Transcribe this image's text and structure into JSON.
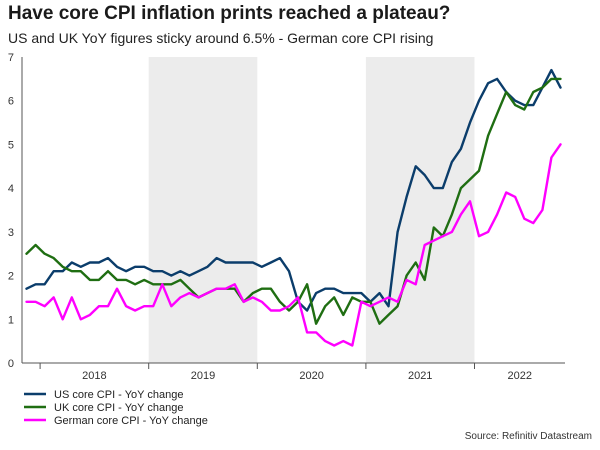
{
  "title": "Have core CPI inflation prints reached a plateau?",
  "subtitle": "US and UK YoY figures sticky around 6.5% - German core CPI rising",
  "source": "Source: Refinitiv Datastream",
  "chart_data": {
    "type": "line",
    "x_labels": [
      "2018",
      "2019",
      "2020",
      "2021",
      "2022"
    ],
    "y_ticks": [
      0,
      1,
      2,
      3,
      4,
      5,
      6,
      7
    ],
    "ylim": [
      0,
      7
    ],
    "x_start": "2017-11",
    "x_end": "2022-10",
    "shaded_years": [
      "2019",
      "2021"
    ],
    "legend_position": "bottom-left",
    "series": [
      {
        "name": "US core CPI - YoY change",
        "color": "#0b3d6b",
        "values": [
          1.7,
          1.8,
          1.8,
          2.1,
          2.1,
          2.3,
          2.2,
          2.3,
          2.3,
          2.4,
          2.2,
          2.1,
          2.2,
          2.2,
          2.1,
          2.1,
          2.0,
          2.1,
          2.0,
          2.1,
          2.2,
          2.4,
          2.3,
          2.3,
          2.3,
          2.3,
          2.2,
          2.3,
          2.4,
          2.1,
          1.4,
          1.2,
          1.6,
          1.7,
          1.7,
          1.6,
          1.6,
          1.6,
          1.4,
          1.6,
          1.3,
          3.0,
          3.8,
          4.5,
          4.3,
          4.0,
          4.0,
          4.6,
          4.9,
          5.5,
          6.0,
          6.4,
          6.5,
          6.2,
          6.0,
          5.9,
          5.9,
          6.3,
          6.7,
          6.3
        ]
      },
      {
        "name": "UK core CPI - YoY change",
        "color": "#1f6e12",
        "values": [
          2.5,
          2.7,
          2.5,
          2.4,
          2.2,
          2.1,
          2.1,
          1.9,
          1.9,
          2.1,
          1.9,
          1.9,
          1.8,
          1.9,
          1.8,
          1.8,
          1.8,
          1.9,
          1.7,
          1.5,
          1.6,
          1.7,
          1.7,
          1.7,
          1.4,
          1.6,
          1.7,
          1.7,
          1.4,
          1.2,
          1.4,
          1.8,
          0.9,
          1.3,
          1.5,
          1.1,
          1.5,
          1.4,
          1.4,
          0.9,
          1.1,
          1.3,
          2.0,
          2.3,
          1.9,
          3.1,
          2.9,
          3.4,
          4.0,
          4.2,
          4.4,
          5.2,
          5.7,
          6.2,
          5.9,
          5.8,
          6.2,
          6.3,
          6.5,
          6.5
        ]
      },
      {
        "name": "German core CPI - YoY change",
        "color": "#ff00ff",
        "values": [
          1.4,
          1.4,
          1.3,
          1.5,
          1.0,
          1.5,
          1.0,
          1.1,
          1.3,
          1.3,
          1.7,
          1.3,
          1.2,
          1.3,
          1.3,
          1.8,
          1.3,
          1.5,
          1.6,
          1.5,
          1.6,
          1.7,
          1.7,
          1.8,
          1.4,
          1.5,
          1.4,
          1.2,
          1.2,
          1.3,
          1.5,
          0.7,
          0.7,
          0.5,
          0.4,
          0.5,
          0.4,
          1.4,
          1.3,
          1.4,
          1.5,
          1.4,
          1.9,
          1.8,
          2.7,
          2.8,
          2.9,
          3.0,
          3.4,
          3.7,
          2.9,
          3.0,
          3.4,
          3.9,
          3.8,
          3.3,
          3.2,
          3.5,
          4.7,
          5.0
        ]
      }
    ]
  }
}
